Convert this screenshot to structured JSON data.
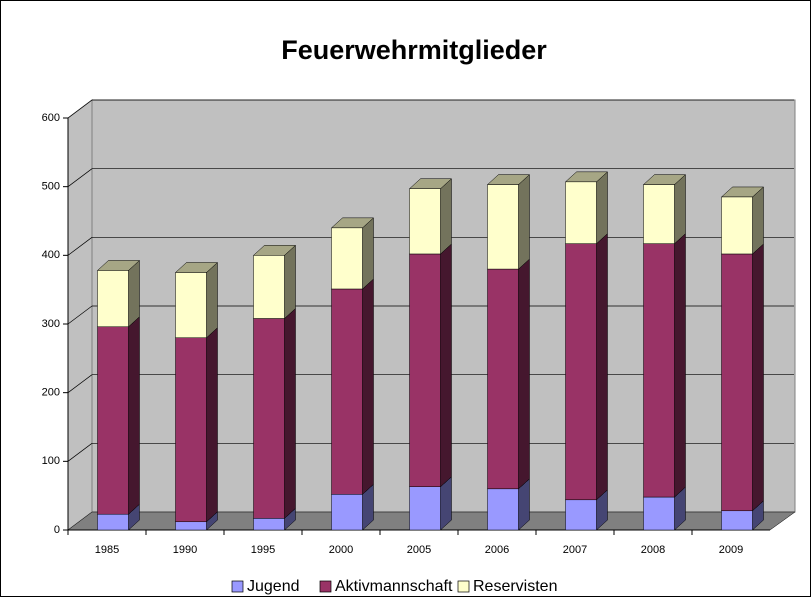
{
  "chart_data": {
    "type": "bar",
    "stacked": true,
    "title": "Feuerwehrmitglieder",
    "categories": [
      "1985",
      "1990",
      "1995",
      "2000",
      "2005",
      "2006",
      "2007",
      "2008",
      "2009"
    ],
    "series": [
      {
        "name": "Jugend",
        "color": "#9999ff",
        "values": [
          23,
          12,
          17,
          52,
          63,
          60,
          44,
          48,
          28
        ]
      },
      {
        "name": "Aktivmannschaft",
        "color": "#993366",
        "values": [
          273,
          268,
          291,
          299,
          339,
          320,
          373,
          369,
          374
        ]
      },
      {
        "name": "Reservisten",
        "color": "#ffffcc",
        "values": [
          82,
          95,
          92,
          89,
          95,
          123,
          90,
          86,
          83
        ]
      }
    ],
    "ylim": [
      0,
      600
    ],
    "yticks": [
      0,
      100,
      200,
      300,
      400,
      500,
      600
    ],
    "grid": true,
    "legend": "bottom"
  }
}
